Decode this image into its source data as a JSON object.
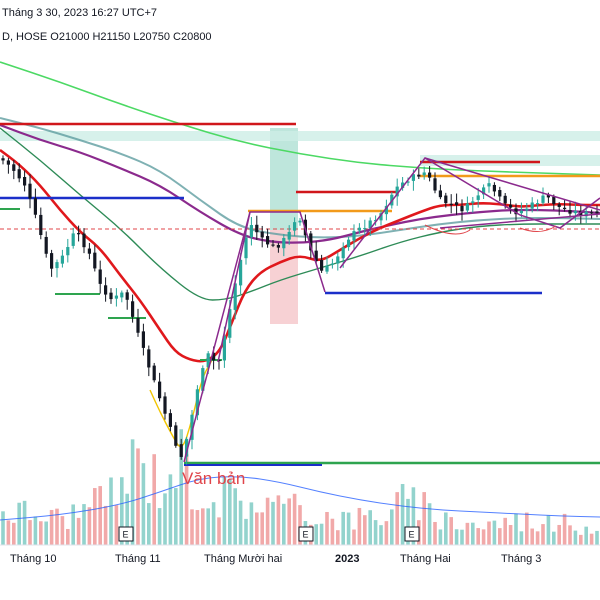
{
  "header": {
    "line1": "Tháng 3 30, 2023  16:27 UTC+7",
    "line2": "D, HOSE  O21000  H21150  L20750  C20800"
  },
  "chart_data": {
    "type": "candlestick",
    "x_axis": {
      "ticks": [
        "Tháng 10",
        "Tháng 11",
        "Tháng Mười hai",
        "2023",
        "Tháng Hai",
        "Tháng 3"
      ],
      "bold_ticks": [
        "2023"
      ]
    },
    "annotation_text": "Văn bản",
    "event_markers": [
      "E",
      "E",
      "E"
    ],
    "last_bar": {
      "open": 21000,
      "high": 21150,
      "low": 20750,
      "close": 20800
    },
    "colors": {
      "up": "#26a69a",
      "down": "#131722",
      "ma_fast": "#e0181c",
      "ma_mid": "#8b2a8d",
      "ma_slow": "#2e8b57",
      "ma_200": "#4cd964",
      "volume": "#ef9a9a",
      "volume_up": "#80cbc4",
      "volume_avg": "#2962ff"
    },
    "grid": false,
    "legend": "none"
  }
}
